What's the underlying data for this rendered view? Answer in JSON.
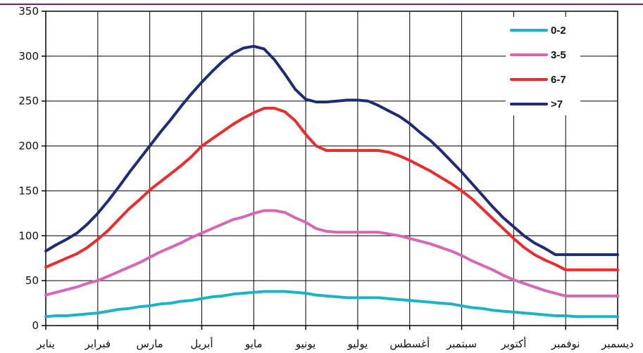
{
  "chart_data": {
    "type": "line",
    "categories": [
      "يناير",
      "فبراير",
      "مارس",
      "أبريل",
      "مايو",
      "يونيو",
      "يوليو",
      "أغسطس",
      "سبتمبر",
      "أكتوبر",
      "نوفمبر",
      "ديسمبر"
    ],
    "x": [
      0,
      0.2,
      0.4,
      0.6,
      0.8,
      1,
      1.2,
      1.4,
      1.6,
      1.8,
      2,
      2.2,
      2.4,
      2.6,
      2.8,
      3,
      3.2,
      3.4,
      3.6,
      3.8,
      4,
      4.2,
      4.4,
      4.6,
      4.8,
      5,
      5.2,
      5.4,
      5.6,
      5.8,
      6,
      6.2,
      6.4,
      6.6,
      6.8,
      7,
      7.2,
      7.4,
      7.6,
      7.8,
      8,
      8.2,
      8.4,
      8.6,
      8.8,
      9,
      9.2,
      9.4,
      9.6,
      9.8,
      10,
      10.2,
      10.4,
      10.6,
      10.8,
      11
    ],
    "series": [
      {
        "name": "0-2",
        "color": "#1ab4c8",
        "values": [
          10,
          11,
          11,
          12,
          13,
          14,
          16,
          18,
          19,
          21,
          22,
          24,
          25,
          27,
          28,
          30,
          32,
          33,
          35,
          36,
          37,
          38,
          38,
          38,
          37,
          36,
          34,
          33,
          32,
          31,
          31,
          31,
          31,
          30,
          29,
          28,
          27,
          26,
          25,
          24,
          22,
          20,
          19,
          17,
          16,
          15,
          14,
          13,
          12,
          11,
          11,
          10,
          10,
          10,
          10,
          10
        ]
      },
      {
        "name": "3-5",
        "color": "#d966b5",
        "values": [
          34,
          37,
          40,
          43,
          47,
          50,
          55,
          60,
          65,
          70,
          76,
          82,
          87,
          92,
          98,
          103,
          108,
          113,
          118,
          121,
          125,
          128,
          128,
          126,
          120,
          115,
          108,
          105,
          104,
          104,
          104,
          104,
          104,
          102,
          100,
          97,
          94,
          91,
          87,
          83,
          78,
          72,
          67,
          62,
          56,
          51,
          47,
          43,
          39,
          36,
          33,
          33,
          33,
          33,
          33,
          33
        ]
      },
      {
        "name": "6-7",
        "color": "#ee2a2a",
        "values": [
          65,
          70,
          75,
          80,
          87,
          96,
          106,
          118,
          130,
          140,
          151,
          160,
          169,
          178,
          188,
          200,
          208,
          216,
          224,
          231,
          237,
          242,
          242,
          238,
          228,
          213,
          200,
          195,
          195,
          195,
          195,
          195,
          195,
          193,
          189,
          184,
          178,
          172,
          165,
          158,
          150,
          141,
          130,
          119,
          108,
          97,
          87,
          79,
          73,
          68,
          62,
          62,
          62,
          62,
          62,
          62
        ]
      },
      {
        "name": ">7",
        "color": "#1f2b78",
        "values": [
          83,
          90,
          96,
          103,
          113,
          125,
          139,
          154,
          170,
          185,
          200,
          215,
          229,
          244,
          258,
          271,
          283,
          294,
          303,
          309,
          311,
          308,
          296,
          280,
          263,
          252,
          249,
          249,
          250,
          251,
          251,
          250,
          245,
          239,
          233,
          225,
          215,
          206,
          195,
          183,
          171,
          158,
          145,
          132,
          120,
          110,
          100,
          92,
          86,
          79,
          79,
          79,
          79,
          79,
          79,
          79
        ]
      }
    ],
    "xlim": [
      0,
      11
    ],
    "ylim": [
      0,
      350
    ],
    "yticks": [
      0,
      50,
      100,
      150,
      200,
      250,
      300,
      350
    ],
    "grid": true,
    "legend": {
      "position": "top-right",
      "entries": [
        "0-2",
        "3-5",
        "6-7",
        ">7"
      ]
    },
    "title": "",
    "xlabel": "",
    "ylabel": ""
  }
}
